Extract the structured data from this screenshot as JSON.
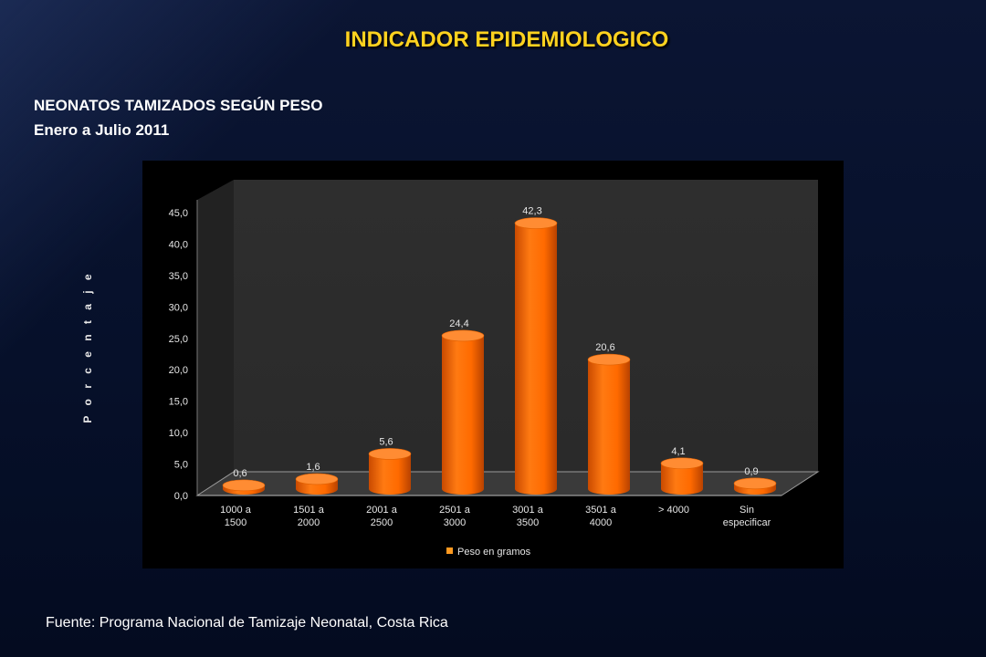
{
  "header": {
    "title": "INDICADOR EPIDEMIOLOGICO",
    "subtitle_line1": "NEONATOS TAMIZADOS SEGÚN PESO",
    "subtitle_line2": "Enero  a  Julio 2011"
  },
  "source": "Fuente: Programa Nacional de Tamizaje Neonatal, Costa Rica",
  "colors": {
    "bar": "#ff6a00",
    "title": "#ffd21f"
  },
  "chart_data": {
    "type": "bar",
    "categories": [
      [
        "1000 a",
        "1500"
      ],
      [
        "1501 a",
        "2000"
      ],
      [
        "2001 a",
        "2500"
      ],
      [
        "2501 a",
        "3000"
      ],
      [
        "3001 a",
        "3500"
      ],
      [
        "3501 a",
        "4000"
      ],
      [
        "> 4000"
      ],
      [
        "Sin",
        "especificar"
      ]
    ],
    "series": [
      {
        "name": "Peso en gramos",
        "values": [
          0.6,
          1.6,
          5.6,
          24.4,
          42.3,
          20.6,
          4.1,
          0.9
        ]
      }
    ],
    "data_labels": [
      "0,6",
      "1,6",
      "5,6",
      "24,4",
      "42,3",
      "20,6",
      "4,1",
      "0,9"
    ],
    "ylabel": "P o r c e n t a j e",
    "yticks": [
      "0,0",
      "5,0",
      "10,0",
      "15,0",
      "20,0",
      "25,0",
      "30,0",
      "35,0",
      "40,0",
      "45,0"
    ],
    "ylim": [
      0,
      45
    ],
    "grid": false,
    "legend_position": "bottom",
    "three_d": true
  }
}
